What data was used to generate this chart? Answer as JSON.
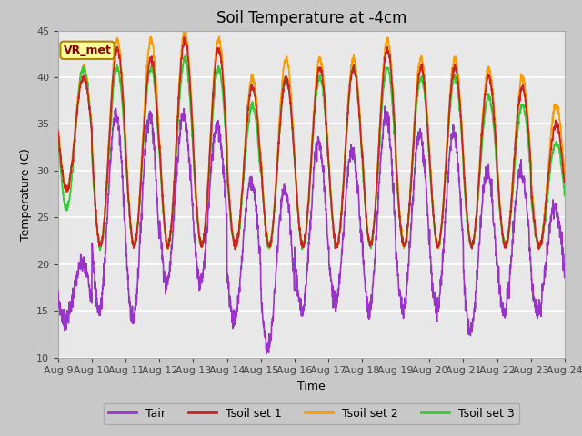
{
  "title": "Soil Temperature at -4cm",
  "xlabel": "Time",
  "ylabel": "Temperature (C)",
  "ylim": [
    10,
    45
  ],
  "yticks": [
    10,
    15,
    20,
    25,
    30,
    35,
    40,
    45
  ],
  "date_labels": [
    "Aug 9",
    "Aug 10",
    "Aug 11",
    "Aug 12",
    "Aug 13",
    "Aug 14",
    "Aug 15",
    "Aug 16",
    "Aug 17",
    "Aug 18",
    "Aug 19",
    "Aug 20",
    "Aug 21",
    "Aug 22",
    "Aug 23",
    "Aug 24"
  ],
  "colors": {
    "Tair": "#9933CC",
    "Tsoil_set1": "#CC2222",
    "Tsoil_set2": "#FF9900",
    "Tsoil_set3": "#33CC33"
  },
  "fig_bg": "#C8C8C8",
  "plot_bg": "#E8E8E8",
  "annotation_text": "VR_met",
  "annotation_box_color": "#FFFF99",
  "annotation_border_color": "#AA8800",
  "annotation_text_color": "#880000",
  "title_fontsize": 12,
  "legend_fontsize": 9,
  "axis_fontsize": 9,
  "tick_fontsize": 8,
  "n_days": 15,
  "points_per_day": 144
}
